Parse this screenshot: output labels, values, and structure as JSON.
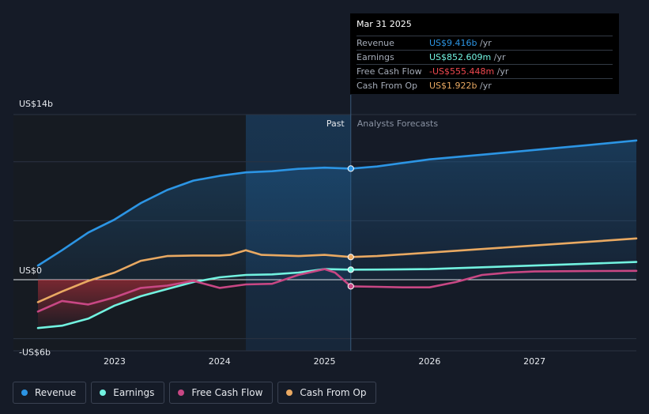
{
  "tooltip": {
    "date": "Mar 31 2025",
    "rows": [
      {
        "label": "Revenue",
        "value": "US$9.416b",
        "unit": "/yr",
        "color": "#2c95e4"
      },
      {
        "label": "Earnings",
        "value": "US$852.609m",
        "unit": "/yr",
        "color": "#72f2e0"
      },
      {
        "label": "Free Cash Flow",
        "value": "-US$555.448m",
        "unit": "/yr",
        "color": "#f0484f"
      },
      {
        "label": "Cash From Op",
        "value": "US$1.922b",
        "unit": "/yr",
        "color": "#e9a962"
      }
    ]
  },
  "legend": [
    {
      "label": "Revenue",
      "color": "#2c95e4"
    },
    {
      "label": "Earnings",
      "color": "#72f2e0"
    },
    {
      "label": "Free Cash Flow",
      "color": "#c84784"
    },
    {
      "label": "Cash From Op",
      "color": "#e9a962"
    }
  ],
  "chart_data": {
    "type": "line",
    "title": "",
    "xlabel": "",
    "ylabel": "",
    "ylim": [
      -6,
      14
    ],
    "xlim": [
      2022.27,
      2027.97
    ],
    "y_tick_labels": [
      {
        "value": 14,
        "label": "US$14b"
      },
      {
        "value": 0,
        "label": "US$0"
      },
      {
        "value": -6,
        "label": "-US$6b"
      }
    ],
    "x_ticks": [
      {
        "value": 2023,
        "label": "2023"
      },
      {
        "value": 2024,
        "label": "2024"
      },
      {
        "value": 2025,
        "label": "2025"
      },
      {
        "value": 2026,
        "label": "2026"
      },
      {
        "value": 2027,
        "label": "2027"
      }
    ],
    "gridlines": [
      14,
      10,
      5,
      0,
      -5
    ],
    "divider_x": 2025.25,
    "past_shade_start": 2024.25,
    "past_label": "Past",
    "forecast_label": "Analysts Forecasts",
    "series": [
      {
        "name": "Revenue",
        "color": "#2c95e4",
        "x": [
          2022.27,
          2022.5,
          2022.75,
          2023.0,
          2023.25,
          2023.5,
          2023.75,
          2024.0,
          2024.25,
          2024.5,
          2024.75,
          2025.0,
          2025.25,
          2025.5,
          2025.75,
          2026.0,
          2026.5,
          2027.0,
          2027.5,
          2027.97
        ],
        "values": [
          1.2,
          2.5,
          4.0,
          5.1,
          6.5,
          7.6,
          8.4,
          8.8,
          9.1,
          9.2,
          9.4,
          9.5,
          9.42,
          9.6,
          9.9,
          10.2,
          10.6,
          11.0,
          11.4,
          11.8
        ]
      },
      {
        "name": "Earnings",
        "color": "#72f2e0",
        "x": [
          2022.27,
          2022.5,
          2022.75,
          2023.0,
          2023.25,
          2023.5,
          2023.75,
          2024.0,
          2024.25,
          2024.5,
          2024.75,
          2025.0,
          2025.25,
          2025.5,
          2026.0,
          2026.5,
          2027.0,
          2027.5,
          2027.97
        ],
        "values": [
          -4.1,
          -3.9,
          -3.3,
          -2.2,
          -1.4,
          -0.8,
          -0.2,
          0.2,
          0.4,
          0.45,
          0.6,
          0.9,
          0.85,
          0.86,
          0.9,
          1.05,
          1.2,
          1.35,
          1.5
        ]
      },
      {
        "name": "Free Cash Flow",
        "color": "#c84784",
        "x": [
          2022.27,
          2022.5,
          2022.75,
          2023.0,
          2023.25,
          2023.5,
          2023.75,
          2024.0,
          2024.25,
          2024.5,
          2024.75,
          2025.0,
          2025.1,
          2025.25,
          2025.5,
          2025.75,
          2026.0,
          2026.25,
          2026.5,
          2026.75,
          2027.0,
          2027.5,
          2027.97
        ],
        "values": [
          -2.7,
          -1.8,
          -2.1,
          -1.5,
          -0.7,
          -0.5,
          -0.1,
          -0.7,
          -0.4,
          -0.35,
          0.4,
          0.9,
          0.6,
          -0.56,
          -0.6,
          -0.65,
          -0.65,
          -0.2,
          0.4,
          0.6,
          0.7,
          0.73,
          0.75
        ]
      },
      {
        "name": "Cash From Op",
        "color": "#e9a962",
        "x": [
          2022.27,
          2022.5,
          2022.75,
          2023.0,
          2023.25,
          2023.5,
          2023.75,
          2024.0,
          2024.1,
          2024.25,
          2024.4,
          2024.75,
          2025.0,
          2025.25,
          2025.5,
          2026.0,
          2026.5,
          2027.0,
          2027.5,
          2027.97
        ],
        "values": [
          -1.9,
          -1.0,
          -0.1,
          0.6,
          1.6,
          2.0,
          2.05,
          2.05,
          2.1,
          2.5,
          2.1,
          2.0,
          2.1,
          1.92,
          2.0,
          2.3,
          2.6,
          2.9,
          3.2,
          3.5
        ]
      }
    ]
  }
}
